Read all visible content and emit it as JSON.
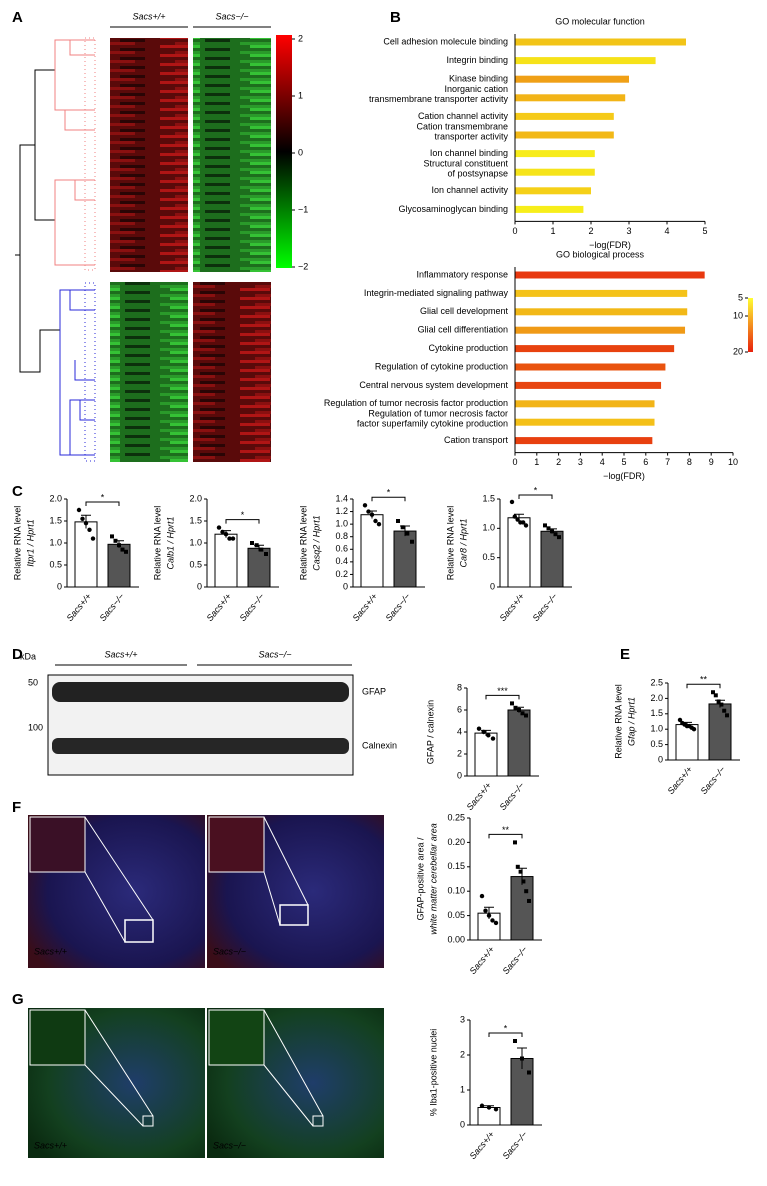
{
  "panel_labels": [
    "A",
    "B",
    "C",
    "D",
    "E",
    "F",
    "G"
  ],
  "heatmap": {
    "groups": [
      "Sacs+/+",
      "Sacs−/−"
    ],
    "colorbar_ticks": [
      2,
      1,
      0,
      {
        "value": -1,
        "label": "−1"
      },
      {
        "value": -2,
        "label": "−2"
      }
    ]
  },
  "blot": {
    "unit": "kDa",
    "markers": [
      50,
      100
    ],
    "groups": [
      "Sacs+/+",
      "Sacs−/−"
    ],
    "bands": [
      "GFAP",
      "Calnexin"
    ]
  },
  "image_labels": {
    "F": [
      "Sacs+/+",
      "Sacs−/−"
    ],
    "G": [
      "Sacs+/+",
      "Sacs−/−"
    ]
  },
  "chart_data": [
    {
      "type": "hbar",
      "title": "GO molecular function",
      "categories": [
        [
          "Cell adhesion molecule binding"
        ],
        [
          "Integrin binding"
        ],
        [
          "Kinase binding"
        ],
        [
          "Inorganic cation",
          "transmembrane transporter activity"
        ],
        [
          "Cation channel activity"
        ],
        [
          "Cation transmembrane",
          "transporter activity"
        ],
        [
          "Ion channel binding"
        ],
        [
          "Structural constituent",
          "of postsynapse"
        ],
        [
          "Ion channel activity"
        ],
        [
          "Glycosaminoglycan binding"
        ]
      ],
      "values": [
        4.5,
        3.7,
        3.0,
        2.9,
        2.6,
        2.6,
        2.1,
        2.1,
        2.0,
        1.8
      ],
      "colors": [
        "#f2c417",
        "#f6e219",
        "#f0a016",
        "#f2b417",
        "#f5ca18",
        "#f2b817",
        "#f7ec1a",
        "#f6e41a",
        "#f5d018",
        "#f7ee1b"
      ],
      "xlim": [
        0,
        5
      ],
      "xticks": [
        0,
        1,
        2,
        3,
        4,
        5
      ],
      "xlabel": "−log(FDR)"
    },
    {
      "type": "hbar",
      "title": "GO biological process",
      "categories": [
        [
          "Inflammatory response"
        ],
        [
          "Integrin-mediated signaling pathway"
        ],
        [
          "Glial cell development"
        ],
        [
          "Glial cell differentiation"
        ],
        [
          "Cytokine production"
        ],
        [
          "Regulation of cytokine production"
        ],
        [
          "Central nervous system development"
        ],
        [
          "Regulation of tumor necrosis factor production"
        ],
        [
          "Regulation of tumor necrosis factor",
          "factor superfamily cytokine production"
        ],
        [
          "Cation transport"
        ]
      ],
      "values": [
        8.7,
        7.9,
        7.9,
        7.8,
        7.3,
        6.9,
        6.7,
        6.4,
        6.4,
        6.3
      ],
      "colors": [
        "#e8380f",
        "#f4c219",
        "#f2b817",
        "#f09a16",
        "#e8420f",
        "#e9530f",
        "#e84510",
        "#f2b417",
        "#f4c018",
        "#e8400f"
      ],
      "xlim": [
        0,
        10
      ],
      "xticks": [
        0,
        1,
        2,
        3,
        4,
        5,
        6,
        7,
        8,
        9,
        10
      ],
      "xlabel": "−log(FDR)",
      "colorbar": {
        "ticks": [
          5,
          10,
          20
        ],
        "colors": [
          "#ffff33",
          "#e8200c"
        ]
      }
    },
    {
      "type": "dotbar",
      "ylabel": [
        "Relative RNA level",
        "Itpr1 / Hprt1"
      ],
      "categories": [
        "Sacs+/+",
        "Sacs−/−"
      ],
      "values": [
        1.48,
        0.97
      ],
      "errors": [
        0.15,
        0.08
      ],
      "points": [
        [
          1.75,
          1.55,
          1.45,
          1.3,
          1.1
        ],
        [
          1.15,
          1.05,
          0.95,
          0.85,
          0.8
        ]
      ],
      "colors": [
        "#ffffff",
        "#555555"
      ],
      "ylim": [
        0,
        2
      ],
      "yticks": [
        0,
        0.5,
        {
          "value": 1,
          "label": "1.0"
        },
        1.5,
        {
          "value": 2,
          "label": "2.0"
        }
      ],
      "significance": "*"
    },
    {
      "type": "dotbar",
      "ylabel": [
        "Relative RNA level",
        "Calb1 / Hprt1"
      ],
      "categories": [
        "Sacs+/+",
        "Sacs−/−"
      ],
      "values": [
        1.2,
        0.88
      ],
      "errors": [
        0.08,
        0.07
      ],
      "points": [
        [
          1.35,
          1.25,
          1.2,
          1.1,
          1.1
        ],
        [
          1.0,
          0.95,
          0.85,
          0.75
        ]
      ],
      "colors": [
        "#ffffff",
        "#555555"
      ],
      "ylim": [
        0,
        2
      ],
      "yticks": [
        0,
        0.5,
        {
          "value": 1,
          "label": "1.0"
        },
        1.5,
        {
          "value": 2,
          "label": "2.0"
        }
      ],
      "significance": "*"
    },
    {
      "type": "dotbar",
      "ylabel": [
        "Relative RNA level",
        "Casq2 / Hprt1"
      ],
      "categories": [
        "Sacs+/+",
        "Sacs−/−"
      ],
      "values": [
        1.15,
        0.89
      ],
      "errors": [
        0.06,
        0.08
      ],
      "points": [
        [
          1.3,
          1.2,
          1.15,
          1.05,
          1.0
        ],
        [
          1.05,
          0.95,
          0.85,
          0.72
        ]
      ],
      "colors": [
        "#ffffff",
        "#555555"
      ],
      "ylim": [
        0,
        1.4
      ],
      "yticks": [
        0,
        0.2,
        0.4,
        0.6,
        0.8,
        {
          "value": 1,
          "label": "1.0"
        },
        1.2,
        1.4
      ],
      "significance": "*"
    },
    {
      "type": "dotbar",
      "ylabel": [
        "Relative RNA level",
        "Car8 / Hprt1"
      ],
      "categories": [
        "Sacs+/+",
        "Sacs−/−"
      ],
      "values": [
        1.18,
        0.95
      ],
      "errors": [
        0.06,
        0.04
      ],
      "points": [
        [
          1.45,
          1.2,
          1.15,
          1.1,
          1.1,
          1.05
        ],
        [
          1.05,
          1.0,
          0.95,
          0.9,
          0.85
        ]
      ],
      "colors": [
        "#ffffff",
        "#555555"
      ],
      "ylim": [
        0,
        1.5
      ],
      "yticks": [
        0,
        0.5,
        {
          "value": 1,
          "label": "1.0"
        },
        1.5
      ],
      "significance": "*"
    },
    {
      "type": "dotbar",
      "ylabel": [
        "GFAP / calnexin"
      ],
      "categories": [
        "Sacs+/+",
        "Sacs−/−"
      ],
      "values": [
        3.9,
        6.0
      ],
      "errors": [
        0.25,
        0.25
      ],
      "points": [
        [
          4.3,
          4.0,
          3.7,
          3.4
        ],
        [
          6.6,
          6.2,
          6.0,
          5.7,
          5.5
        ]
      ],
      "colors": [
        "#ffffff",
        "#555555"
      ],
      "ylim": [
        0,
        8
      ],
      "yticks": [
        0,
        2,
        4,
        6,
        8
      ],
      "significance": "***"
    },
    {
      "type": "dotbar",
      "ylabel": [
        "Relative RNA level",
        "Gfap / Hprt1"
      ],
      "categories": [
        "Sacs+/+",
        "Sacs−/−"
      ],
      "values": [
        1.15,
        1.82
      ],
      "errors": [
        0.07,
        0.12
      ],
      "points": [
        [
          1.3,
          1.2,
          1.15,
          1.1,
          1.1,
          1.05,
          1.0
        ],
        [
          2.2,
          2.1,
          1.9,
          1.8,
          1.6,
          1.45
        ]
      ],
      "colors": [
        "#ffffff",
        "#555555"
      ],
      "ylim": [
        0,
        2.5
      ],
      "yticks": [
        0,
        0.5,
        {
          "value": 1,
          "label": "1.0"
        },
        1.5,
        {
          "value": 2,
          "label": "2.0"
        },
        2.5
      ],
      "significance": "**"
    },
    {
      "type": "dotbar",
      "ylabel": [
        "GFAP-positive area /",
        "white matter cerebellar area"
      ],
      "categories": [
        "Sacs+/+",
        "Sacs−/−"
      ],
      "values": [
        0.055,
        0.13
      ],
      "errors": [
        0.012,
        0.017
      ],
      "points": [
        [
          0.09,
          0.06,
          0.05,
          0.04,
          0.035
        ],
        [
          0.2,
          0.15,
          0.14,
          0.12,
          0.1,
          0.08
        ]
      ],
      "colors": [
        "#ffffff",
        "#555555"
      ],
      "ylim": [
        0,
        0.25
      ],
      "yticks": [
        {
          "value": 0,
          "label": "0.00"
        },
        0.05,
        {
          "value": 0.1,
          "label": "0.10"
        },
        0.15,
        {
          "value": 0.2,
          "label": "0.20"
        },
        0.25
      ],
      "significance": "**"
    },
    {
      "type": "dotbar",
      "ylabel": [
        "% Iba1-positive nuclei"
      ],
      "categories": [
        "Sacs+/+",
        "Sacs−/−"
      ],
      "values": [
        0.5,
        1.9
      ],
      "errors": [
        0.05,
        0.3
      ],
      "points": [
        [
          0.55,
          0.5,
          0.45
        ],
        [
          2.4,
          1.9,
          1.5
        ]
      ],
      "colors": [
        "#ffffff",
        "#555555"
      ],
      "ylim": [
        0,
        3
      ],
      "yticks": [
        0,
        1,
        2,
        3
      ],
      "significance": "*"
    }
  ]
}
